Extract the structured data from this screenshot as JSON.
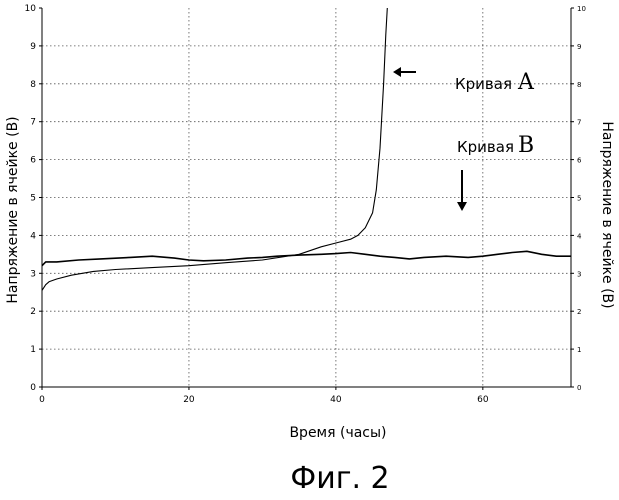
{
  "chart_data": {
    "type": "line",
    "xlabel": "Время (часы)",
    "ylabel_left": "Напряжение в ячейке (В)",
    "ylabel_right": "Напряжение в ячейке (В)",
    "xlim": [
      0,
      72
    ],
    "ylim": [
      0,
      10
    ],
    "x_ticks": [
      0,
      20,
      40,
      60
    ],
    "y_ticks": [
      0,
      1,
      2,
      3,
      4,
      5,
      6,
      7,
      8,
      9,
      10
    ],
    "grid": true,
    "series": [
      {
        "name": "Кривая A",
        "x": [
          0,
          0.5,
          1,
          2,
          4,
          7,
          10,
          15,
          20,
          25,
          30,
          35,
          38,
          40,
          42,
          43,
          44,
          45,
          45.5,
          46,
          46.5,
          46.8,
          47
        ],
        "y": [
          2.55,
          2.7,
          2.78,
          2.85,
          2.95,
          3.05,
          3.1,
          3.15,
          3.2,
          3.28,
          3.35,
          3.5,
          3.7,
          3.8,
          3.9,
          4.0,
          4.2,
          4.6,
          5.2,
          6.3,
          8.0,
          9.3,
          10.0
        ]
      },
      {
        "name": "Кривая B",
        "x": [
          0,
          0.5,
          2,
          5,
          8,
          12,
          15,
          18,
          20,
          22,
          25,
          28,
          30,
          32,
          35,
          38,
          40,
          42,
          44,
          46,
          48,
          50,
          52,
          55,
          58,
          60,
          62,
          64,
          66,
          68,
          70,
          72
        ],
        "y": [
          3.2,
          3.3,
          3.3,
          3.35,
          3.38,
          3.42,
          3.45,
          3.4,
          3.35,
          3.33,
          3.35,
          3.4,
          3.42,
          3.45,
          3.48,
          3.5,
          3.52,
          3.55,
          3.5,
          3.45,
          3.42,
          3.38,
          3.42,
          3.45,
          3.42,
          3.45,
          3.5,
          3.55,
          3.58,
          3.5,
          3.45,
          3.45
        ]
      }
    ],
    "annotations": [
      {
        "text": "Кривая",
        "letter": "A"
      },
      {
        "text": "Кривая",
        "letter": "B"
      }
    ]
  },
  "caption": "Фиг. 2"
}
